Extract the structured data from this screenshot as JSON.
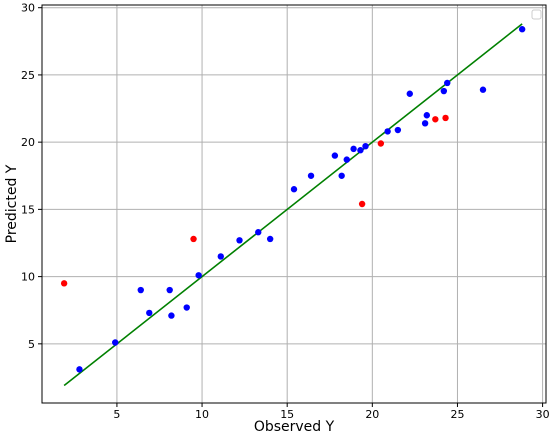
{
  "chart_data": {
    "type": "scatter",
    "title": "",
    "xlabel": "Observed Y",
    "ylabel": "Predicted Y",
    "xlim": [
      0.6,
      30.2
    ],
    "ylim": [
      0.6,
      30.2
    ],
    "xticks": [
      5,
      10,
      15,
      20,
      25,
      30
    ],
    "yticks": [
      5,
      10,
      15,
      20,
      25,
      30
    ],
    "grid": true,
    "legend": "top-right",
    "colors": {
      "blue": "#0000ff",
      "red": "#ff0000",
      "line": "#008000",
      "grid": "#b0b0b0"
    },
    "series": [
      {
        "kind": "scatter",
        "color": "#0000ff",
        "points": [
          [
            2.8,
            3.1
          ],
          [
            4.9,
            5.1
          ],
          [
            6.4,
            9.0
          ],
          [
            6.9,
            7.3
          ],
          [
            8.1,
            9.0
          ],
          [
            8.2,
            7.1
          ],
          [
            9.1,
            7.7
          ],
          [
            9.8,
            10.1
          ],
          [
            11.1,
            11.5
          ],
          [
            12.2,
            12.7
          ],
          [
            13.3,
            13.3
          ],
          [
            14.0,
            12.8
          ],
          [
            15.4,
            16.5
          ],
          [
            16.4,
            17.5
          ],
          [
            17.8,
            19.0
          ],
          [
            18.2,
            17.5
          ],
          [
            18.5,
            18.7
          ],
          [
            18.9,
            19.5
          ],
          [
            19.3,
            19.4
          ],
          [
            19.6,
            19.7
          ],
          [
            20.9,
            20.8
          ],
          [
            21.5,
            20.9
          ],
          [
            22.2,
            23.6
          ],
          [
            23.1,
            21.4
          ],
          [
            23.2,
            22.0
          ],
          [
            24.2,
            23.8
          ],
          [
            24.4,
            24.4
          ],
          [
            26.5,
            23.9
          ],
          [
            28.8,
            28.4
          ]
        ]
      },
      {
        "kind": "scatter",
        "color": "#ff0000",
        "points": [
          [
            1.9,
            9.5
          ],
          [
            9.5,
            12.8
          ],
          [
            19.4,
            15.4
          ],
          [
            20.5,
            19.9
          ],
          [
            23.7,
            21.7
          ],
          [
            24.3,
            21.8
          ]
        ]
      },
      {
        "kind": "line",
        "color": "#008000",
        "points": [
          [
            1.9,
            1.9
          ],
          [
            28.8,
            28.8
          ]
        ]
      }
    ]
  }
}
